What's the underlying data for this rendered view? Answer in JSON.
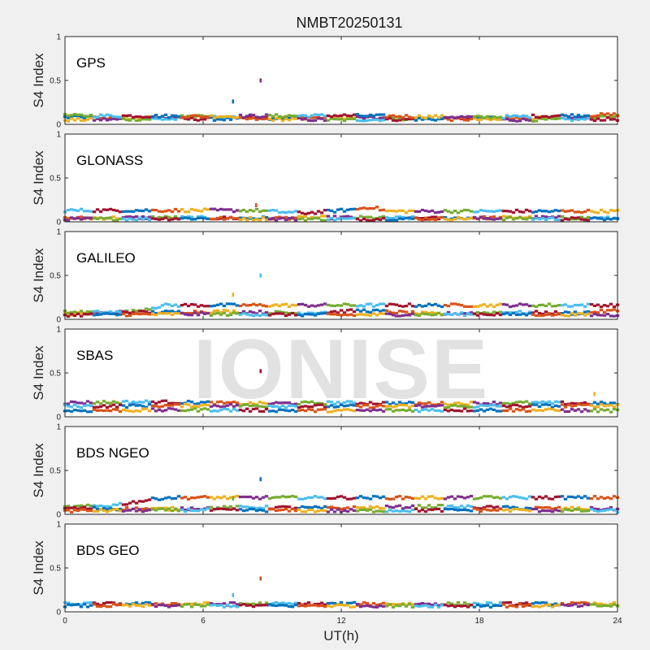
{
  "chart_data": {
    "type": "scatter",
    "title": "NMBT20250131",
    "xlabel": "UT(h)",
    "ylabel": "S4 Index",
    "xlim": [
      0,
      24
    ],
    "ylim": [
      0,
      1
    ],
    "xticks": [
      "0",
      "6",
      "12",
      "18",
      "24"
    ],
    "yticks": [
      "0",
      "0.5",
      "1"
    ],
    "grid": false,
    "watermark": "IONISE",
    "colors": [
      "#0072BD",
      "#D95319",
      "#EDB120",
      "#7E2F8E",
      "#77AC30",
      "#4DBEEE",
      "#A2142F"
    ],
    "panels": [
      {
        "label": "GPS",
        "baseline": [
          {
            "x": [
              0,
              3,
              6,
              9,
              12,
              15,
              18,
              21,
              24
            ],
            "y": [
              0.08,
              0.07,
              0.09,
              0.07,
              0.08,
              0.06,
              0.07,
              0.07,
              0.09
            ]
          },
          {
            "x": [
              0,
              4,
              8,
              12,
              16,
              20,
              24
            ],
            "y": [
              0.05,
              0.06,
              0.06,
              0.05,
              0.06,
              0.05,
              0.06
            ]
          },
          {
            "x": [
              0,
              6,
              12,
              18,
              24
            ],
            "y": [
              0.1,
              0.09,
              0.1,
              0.08,
              0.11
            ]
          }
        ],
        "outliers": [
          {
            "x": 7.3,
            "y": 0.26
          },
          {
            "x": 8.5,
            "y": 0.5
          }
        ]
      },
      {
        "label": "GLONASS",
        "baseline": [
          {
            "x": [
              0,
              4,
              8,
              12,
              16,
              20,
              24
            ],
            "y": [
              0.04,
              0.05,
              0.04,
              0.05,
              0.04,
              0.05,
              0.04
            ]
          },
          {
            "x": [
              0,
              6,
              12,
              18,
              24
            ],
            "y": [
              0.03,
              0.04,
              0.03,
              0.04,
              0.03
            ]
          },
          {
            "x": [
              8.3,
              9.5,
              10.5,
              11.5,
              12.5,
              13.3,
              14.0
            ],
            "y": [
              0.13,
              0.11,
              0.1,
              0.12,
              0.14,
              0.17,
              0.12
            ]
          }
        ],
        "outliers": [
          {
            "x": 8.3,
            "y": 0.19
          }
        ]
      },
      {
        "label": "GALILEO",
        "baseline": [
          {
            "x": [
              0,
              1.5,
              3,
              4.3
            ],
            "y": [
              0.06,
              0.07,
              0.09,
              0.16
            ]
          },
          {
            "x": [
              4,
              7,
              10,
              13,
              16,
              19,
              22,
              24
            ],
            "y": [
              0.08,
              0.09,
              0.07,
              0.1,
              0.06,
              0.08,
              0.07,
              0.1
            ]
          },
          {
            "x": [
              0,
              6,
              12,
              18,
              24
            ],
            "y": [
              0.05,
              0.06,
              0.05,
              0.06,
              0.05
            ]
          }
        ],
        "outliers": [
          {
            "x": 7.3,
            "y": 0.28
          },
          {
            "x": 8.5,
            "y": 0.5
          }
        ]
      },
      {
        "label": "SBAS",
        "baseline": [
          {
            "x": [
              0,
              4,
              8,
              12,
              16,
              20,
              24
            ],
            "y": [
              0.16,
              0.17,
              0.15,
              0.16,
              0.15,
              0.16,
              0.15
            ]
          },
          {
            "x": [
              0,
              6,
              12,
              18,
              24
            ],
            "y": [
              0.12,
              0.13,
              0.12,
              0.12,
              0.13
            ]
          },
          {
            "x": [
              0,
              6,
              12,
              18,
              24
            ],
            "y": [
              0.07,
              0.08,
              0.07,
              0.08,
              0.07
            ]
          }
        ],
        "outliers": [
          {
            "x": 7.3,
            "y": 0.29
          },
          {
            "x": 8.5,
            "y": 0.52
          },
          {
            "x": 23.0,
            "y": 0.26
          }
        ]
      },
      {
        "label": "BDS NGEO",
        "baseline": [
          {
            "x": [
              0,
              2,
              4.3
            ],
            "y": [
              0.08,
              0.1,
              0.19
            ]
          },
          {
            "x": [
              0,
              4,
              8,
              12,
              16,
              20,
              24
            ],
            "y": [
              0.07,
              0.06,
              0.08,
              0.07,
              0.09,
              0.07,
              0.06
            ]
          },
          {
            "x": [
              0,
              6,
              12,
              18,
              24
            ],
            "y": [
              0.04,
              0.05,
              0.04,
              0.05,
              0.04
            ]
          }
        ],
        "outliers": [
          {
            "x": 7.3,
            "y": 0.18
          },
          {
            "x": 8.5,
            "y": 0.4
          }
        ]
      },
      {
        "label": "BDS GEO",
        "baseline": [
          {
            "x": [
              0,
              6,
              12,
              18,
              24
            ],
            "y": [
              0.09,
              0.09,
              0.09,
              0.09,
              0.09
            ]
          },
          {
            "x": [
              0,
              6,
              12,
              18,
              24
            ],
            "y": [
              0.07,
              0.07,
              0.07,
              0.07,
              0.07
            ]
          }
        ],
        "outliers": [
          {
            "x": 7.3,
            "y": 0.19
          },
          {
            "x": 8.5,
            "y": 0.38
          }
        ]
      }
    ]
  }
}
